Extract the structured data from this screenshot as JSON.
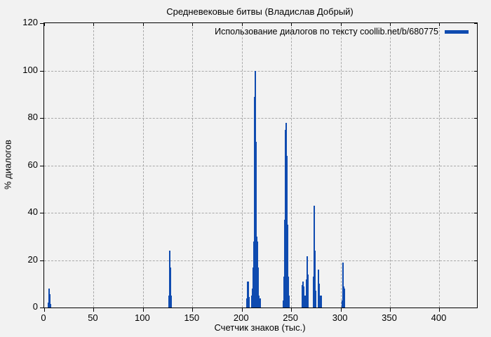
{
  "colors": {
    "bar": "#0f4bb0",
    "background": "#f2f2f2",
    "grid": "#a9a9a9",
    "border": "#000000",
    "text": "#000000"
  },
  "chart_data": {
    "type": "bar",
    "title": "Средневековые битвы (Владислав Добрый)",
    "xlabel": "Счетчик знаков (тыс.)",
    "ylabel": "% диалогов",
    "legend_label": "Использование диалогов по тексту coollib.net/b/680775",
    "legend_position": "top-right",
    "grid": true,
    "xlim": [
      0,
      438
    ],
    "ylim": [
      0,
      120
    ],
    "x_ticks": [
      0,
      50,
      100,
      150,
      200,
      250,
      300,
      350,
      400
    ],
    "y_ticks": [
      0,
      20,
      40,
      60,
      80,
      100,
      120
    ],
    "points": [
      [
        4.6,
        2
      ],
      [
        5.0,
        8
      ],
      [
        5.5,
        5.5
      ],
      [
        6.0,
        3
      ],
      [
        6.6,
        1.5
      ],
      [
        126.2,
        5
      ],
      [
        126.8,
        11
      ],
      [
        127.3,
        24
      ],
      [
        127.8,
        17
      ],
      [
        128.4,
        5
      ],
      [
        205.2,
        4
      ],
      [
        205.8,
        11
      ],
      [
        206.3,
        10
      ],
      [
        206.9,
        11
      ],
      [
        207.5,
        4.5
      ],
      [
        209.8,
        5
      ],
      [
        210.9,
        8
      ],
      [
        211.5,
        17
      ],
      [
        212.1,
        28
      ],
      [
        212.7,
        70
      ],
      [
        213.2,
        89
      ],
      [
        213.6,
        100
      ],
      [
        214.1,
        70
      ],
      [
        214.6,
        44
      ],
      [
        215.1,
        30
      ],
      [
        215.6,
        28
      ],
      [
        216.2,
        17
      ],
      [
        216.8,
        8
      ],
      [
        217.4,
        5
      ],
      [
        218.3,
        4
      ],
      [
        242.2,
        3
      ],
      [
        242.8,
        13
      ],
      [
        243.4,
        37
      ],
      [
        244.0,
        75
      ],
      [
        244.6,
        78
      ],
      [
        245.1,
        69
      ],
      [
        245.7,
        64
      ],
      [
        246.3,
        35
      ],
      [
        246.9,
        13
      ],
      [
        247.5,
        5
      ],
      [
        260.9,
        5
      ],
      [
        261.5,
        9.5
      ],
      [
        262.0,
        11
      ],
      [
        262.6,
        9
      ],
      [
        263.2,
        4.5
      ],
      [
        263.9,
        5
      ],
      [
        265.5,
        12
      ],
      [
        266.1,
        21.5
      ],
      [
        266.6,
        14
      ],
      [
        267.2,
        10
      ],
      [
        272.6,
        13
      ],
      [
        273.1,
        37
      ],
      [
        273.5,
        43
      ],
      [
        274.0,
        24
      ],
      [
        274.6,
        7
      ],
      [
        277.7,
        16
      ],
      [
        278.3,
        10
      ],
      [
        278.9,
        5
      ],
      [
        280.6,
        5
      ],
      [
        301.8,
        3
      ],
      [
        302.3,
        19
      ],
      [
        302.9,
        9
      ],
      [
        303.5,
        8
      ]
    ]
  }
}
